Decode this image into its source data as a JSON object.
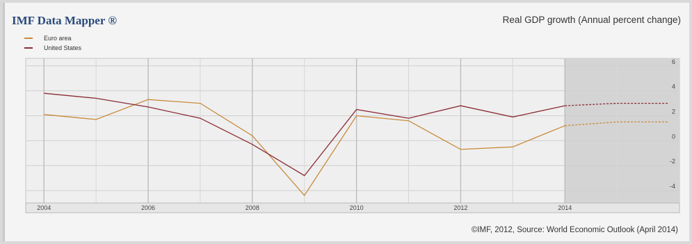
{
  "header": {
    "brand": "IMF Data Mapper ®",
    "title": "Real GDP growth (Annual percent change)"
  },
  "footer": {
    "source": "©IMF, 2012, Source: World Economic Outlook (April 2014)"
  },
  "chart_data": {
    "type": "line",
    "title": "Real GDP growth (Annual percent change)",
    "xlabel": "",
    "ylabel": "",
    "x": [
      2004,
      2005,
      2006,
      2007,
      2008,
      2009,
      2010,
      2011,
      2012,
      2013,
      2014,
      2015,
      2016
    ],
    "x_ticks": [
      "2004",
      "2006",
      "2008",
      "2010",
      "2012",
      "2014"
    ],
    "y_ticks": [
      "6",
      "4",
      "2",
      "0",
      "-2",
      "-4"
    ],
    "xlim": [
      2003.65,
      2016.2
    ],
    "ylim": [
      -5,
      6.6
    ],
    "grid": true,
    "legend_position": "top-left",
    "projection_start": 2014,
    "colors": {
      "euro": "#c98a3a",
      "us": "#8b2b35",
      "projection_shade": "#d4d4d4"
    },
    "series": [
      {
        "name": "Euro area",
        "color": "#c98a3a",
        "values": [
          2.1,
          1.7,
          3.3,
          3.0,
          0.4,
          -4.4,
          2.0,
          1.6,
          -0.7,
          -0.5,
          1.2,
          1.5,
          1.5
        ]
      },
      {
        "name": "United States",
        "color": "#8b2b35",
        "values": [
          3.8,
          3.4,
          2.7,
          1.8,
          -0.3,
          -2.8,
          2.5,
          1.8,
          2.8,
          1.9,
          2.8,
          3.0,
          3.0
        ]
      }
    ]
  }
}
